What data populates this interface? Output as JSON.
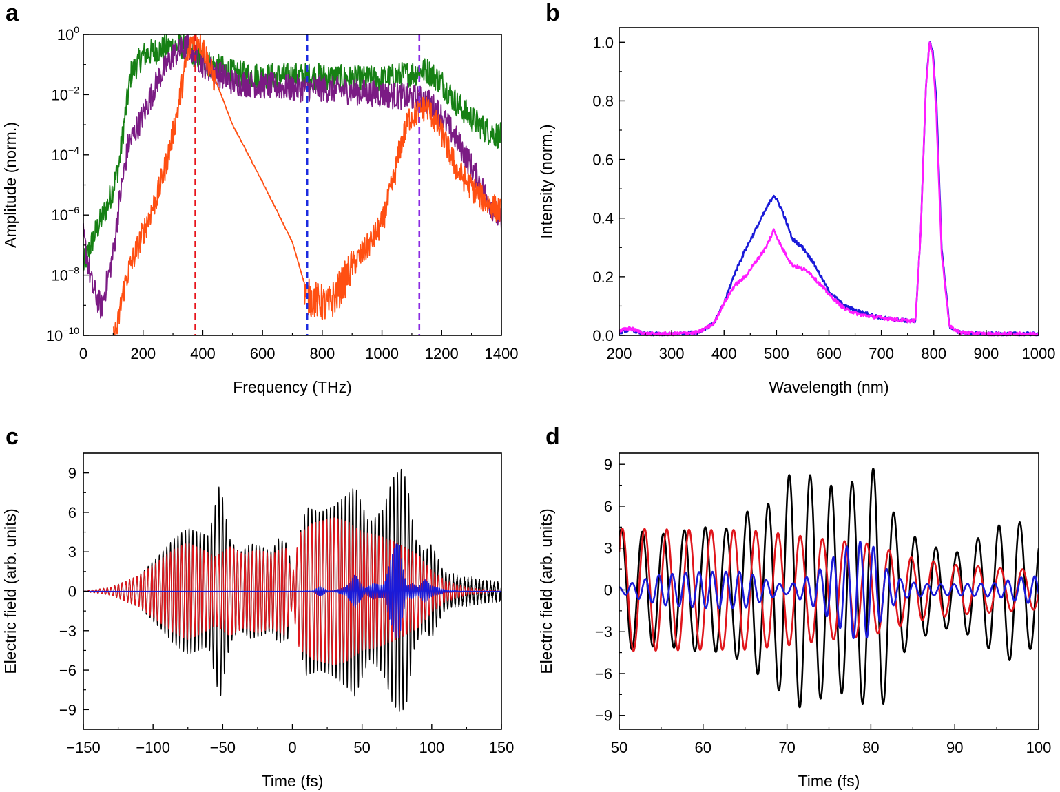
{
  "chart_data": [
    {
      "panel": "a",
      "type": "line",
      "xlabel": "Frequency (THz)",
      "ylabel": "Amplitude (norm.)",
      "yscale": "log",
      "xlim": [
        0,
        1400
      ],
      "ylim_exp": [
        -10,
        0
      ],
      "xticks": [
        0,
        200,
        400,
        600,
        800,
        1000,
        1200,
        1400
      ],
      "xtick_labels": [
        "0",
        "200",
        "400",
        "600",
        "800",
        "1000",
        "1200",
        "1400"
      ],
      "yticks_exp": [
        -10,
        -8,
        -6,
        -4,
        -2,
        0
      ],
      "ytick_bases": [
        "10",
        "10",
        "10",
        "10",
        "10",
        "10"
      ],
      "ytick_exponents": [
        "−10",
        "−8",
        "−6",
        "−4",
        "−2",
        "0"
      ],
      "vlines": [
        {
          "x": 375,
          "color": "#e8141c"
        },
        {
          "x": 750,
          "color": "#1c2ce0"
        },
        {
          "x": 1125,
          "color": "#8a2be2"
        }
      ],
      "series": [
        {
          "name": "green",
          "color": "#168014",
          "x": [
            0,
            40,
            80,
            100,
            120,
            140,
            160,
            200,
            260,
            300,
            340,
            400,
            500,
            600,
            700,
            800,
            900,
            1000,
            1100,
            1150,
            1200,
            1250,
            1300,
            1350,
            1400
          ],
          "log_y": [
            -7.6,
            -6.5,
            -5.6,
            -5.0,
            -4.2,
            -2.6,
            -1.2,
            -0.6,
            -0.4,
            -0.3,
            -0.3,
            -0.8,
            -1.2,
            -1.3,
            -1.3,
            -1.3,
            -1.4,
            -1.4,
            -1.2,
            -1.1,
            -1.5,
            -2.2,
            -2.7,
            -3.1,
            -3.3
          ]
        },
        {
          "name": "purple",
          "color": "#7b1b84",
          "x": [
            0,
            30,
            60,
            100,
            120,
            150,
            200,
            250,
            300,
            350,
            400,
            500,
            600,
            700,
            800,
            900,
            1000,
            1100,
            1150,
            1200,
            1250,
            1300,
            1350,
            1400
          ],
          "log_y": [
            -6.6,
            -8.3,
            -9.0,
            -7.2,
            -5.5,
            -3.6,
            -2.6,
            -1.4,
            -0.6,
            -0.3,
            -0.9,
            -1.5,
            -1.6,
            -1.7,
            -1.7,
            -1.8,
            -1.9,
            -2.0,
            -2.1,
            -2.6,
            -3.4,
            -4.3,
            -5.3,
            -6.2
          ]
        },
        {
          "name": "orange",
          "color": "#ff4f12",
          "x": [
            100,
            115,
            130,
            150,
            200,
            250,
            280,
            300,
            320,
            345,
            365,
            380,
            400,
            430,
            500,
            600,
            700,
            750,
            780,
            820,
            860,
            900,
            950,
            1000,
            1040,
            1060,
            1090,
            1120,
            1150,
            1200,
            1250,
            1300,
            1350,
            1400
          ],
          "log_y": [
            -10.0,
            -9.6,
            -8.6,
            -7.8,
            -6.5,
            -5.2,
            -4.1,
            -3.2,
            -2.2,
            -0.8,
            -0.1,
            0.0,
            -0.3,
            -1.2,
            -3.0,
            -4.9,
            -6.9,
            -8.6,
            -8.7,
            -8.9,
            -8.3,
            -7.6,
            -7.0,
            -6.2,
            -4.7,
            -3.7,
            -2.7,
            -2.5,
            -2.3,
            -3.2,
            -4.4,
            -5.0,
            -5.5,
            -5.8
          ]
        }
      ]
    },
    {
      "panel": "b",
      "type": "line",
      "xlabel": "Wavelength (nm)",
      "ylabel": "Intensity (norm.)",
      "xlim": [
        200,
        1000
      ],
      "ylim": [
        0,
        1.05
      ],
      "xticks": [
        200,
        300,
        400,
        500,
        600,
        700,
        800,
        900,
        1000
      ],
      "xtick_labels": [
        "200",
        "300",
        "400",
        "500",
        "600",
        "700",
        "800",
        "900",
        "1000"
      ],
      "yticks": [
        0,
        0.2,
        0.4,
        0.6,
        0.8,
        1.0
      ],
      "ytick_labels": [
        "0.0",
        "0.2",
        "0.4",
        "0.6",
        "0.8",
        "1.0"
      ],
      "series": [
        {
          "name": "blue",
          "color": "#1a1ad8",
          "x": [
            200,
            220,
            250,
            300,
            350,
            380,
            400,
            420,
            440,
            460,
            480,
            495,
            510,
            530,
            550,
            570,
            600,
            630,
            660,
            700,
            750,
            765,
            775,
            785,
            792,
            798,
            805,
            815,
            830,
            850,
            900,
            1000
          ],
          "y": [
            0.01,
            0.02,
            0.005,
            0.005,
            0.01,
            0.04,
            0.11,
            0.21,
            0.29,
            0.36,
            0.43,
            0.48,
            0.43,
            0.33,
            0.3,
            0.25,
            0.15,
            0.1,
            0.08,
            0.06,
            0.05,
            0.05,
            0.35,
            0.85,
            1.0,
            0.97,
            0.8,
            0.3,
            0.03,
            0.01,
            0.005,
            0.005
          ]
        },
        {
          "name": "magenta",
          "color": "#ff1cff",
          "x": [
            200,
            220,
            250,
            300,
            350,
            380,
            400,
            420,
            440,
            460,
            480,
            495,
            510,
            530,
            560,
            600,
            630,
            660,
            700,
            750,
            765,
            775,
            785,
            792,
            798,
            805,
            815,
            830,
            850,
            900,
            1000
          ],
          "y": [
            0.015,
            0.025,
            0.005,
            0.005,
            0.01,
            0.04,
            0.11,
            0.17,
            0.2,
            0.25,
            0.3,
            0.36,
            0.3,
            0.24,
            0.22,
            0.14,
            0.09,
            0.07,
            0.06,
            0.05,
            0.05,
            0.35,
            0.85,
            1.0,
            0.96,
            0.75,
            0.28,
            0.03,
            0.01,
            0.005,
            0.005
          ]
        }
      ]
    },
    {
      "panel": "c",
      "type": "line",
      "xlabel": "Time (fs)",
      "ylabel": "Electric field (arb. units)",
      "xlim": [
        -150,
        150
      ],
      "ylim": [
        -10.5,
        10.5
      ],
      "xticks": [
        -150,
        -100,
        -50,
        0,
        50,
        100,
        150
      ],
      "xtick_labels": [
        "−150",
        "−100",
        "−50",
        "0",
        "50",
        "100",
        "150"
      ],
      "yticks": [
        -9,
        -6,
        -3,
        0,
        3,
        6,
        9
      ],
      "ytick_labels": [
        "−9",
        "−6",
        "−3",
        "0",
        "3",
        "6",
        "9"
      ],
      "series": [
        {
          "name": "black",
          "color": "#000000",
          "period_fs": 2.67,
          "envelope_t": [
            -150,
            -130,
            -110,
            -95,
            -85,
            -75,
            -65,
            -60,
            -52,
            -45,
            -38,
            -30,
            -22,
            -15,
            -10,
            -3,
            0,
            5,
            10,
            20,
            30,
            40,
            45,
            55,
            65,
            72,
            78,
            82,
            88,
            95,
            100,
            108,
            118,
            130,
            140,
            150
          ],
          "envelope_a": [
            0,
            0.3,
            1.2,
            2.8,
            4.0,
            4.8,
            4.4,
            4.2,
            8.3,
            4.0,
            2.9,
            3.6,
            3.4,
            3.0,
            4.0,
            3.6,
            0.8,
            4.2,
            6.4,
            6.0,
            6.5,
            7.4,
            8.0,
            5.2,
            6.2,
            8.6,
            9.3,
            8.5,
            4.0,
            3.0,
            3.6,
            1.6,
            1.0,
            0.8,
            0.6,
            0.5
          ]
        },
        {
          "name": "red",
          "color": "#e0161c",
          "period_fs": 2.67,
          "envelope_t": [
            -150,
            -130,
            -110,
            -95,
            -85,
            -75,
            -65,
            -55,
            -45,
            -35,
            -25,
            -15,
            -5,
            0,
            5,
            15,
            30,
            40,
            50,
            60,
            70,
            80,
            90,
            100,
            110,
            125,
            140,
            150
          ],
          "envelope_a": [
            0,
            0.3,
            1.2,
            2.4,
            3.2,
            3.7,
            3.2,
            2.6,
            3.4,
            2.8,
            3.2,
            2.8,
            3.4,
            1.2,
            4.4,
            5.2,
            5.6,
            5.3,
            4.5,
            4.3,
            3.9,
            3.4,
            2.8,
            1.6,
            0.8,
            0.3,
            0.1,
            0
          ]
        },
        {
          "name": "blue",
          "color": "#1a1ad8",
          "period_fs": 1.3,
          "envelope_t": [
            -150,
            0,
            15,
            20,
            25,
            30,
            38,
            42,
            45,
            48,
            52,
            58,
            62,
            66,
            70,
            74,
            77,
            79,
            82,
            86,
            90,
            95,
            100,
            110,
            120,
            150
          ],
          "envelope_a": [
            0,
            0,
            0.05,
            0.4,
            0.05,
            0.05,
            0.3,
            0.8,
            1.3,
            0.8,
            0.2,
            0.6,
            0.5,
            0.5,
            2.2,
            3.6,
            3.5,
            2.0,
            0.4,
            0.6,
            0.3,
            0.9,
            0.4,
            0.1,
            0.02,
            0
          ]
        }
      ]
    },
    {
      "panel": "d",
      "type": "line",
      "xlabel": "Time (fs)",
      "ylabel": "Electric field (arb. units)",
      "xlim": [
        50,
        100
      ],
      "ylim": [
        -10,
        9.8
      ],
      "xticks": [
        50,
        60,
        70,
        80,
        90,
        100
      ],
      "xtick_labels": [
        "50",
        "60",
        "70",
        "80",
        "90",
        "100"
      ],
      "yticks": [
        -9,
        -6,
        -3,
        0,
        3,
        6,
        9
      ],
      "ytick_labels": [
        "−9",
        "−6",
        "−3",
        "0",
        "3",
        "6",
        "9"
      ],
      "series": [
        {
          "name": "black",
          "color": "#000000",
          "period_fs": 2.5,
          "phase": 0.9,
          "envelope_t": [
            50,
            55,
            60,
            63,
            66,
            68,
            70,
            72,
            74,
            76,
            78,
            80,
            81,
            83,
            86,
            90,
            94,
            97,
            100
          ],
          "envelope_a": [
            4.4,
            4.0,
            4.5,
            4.4,
            6.0,
            6.2,
            8.2,
            8.5,
            7.8,
            7.3,
            7.8,
            8.5,
            9.2,
            5.0,
            3.4,
            2.6,
            4.2,
            5.2,
            3.8
          ]
        },
        {
          "name": "red",
          "color": "#e0161c",
          "period_fs": 2.65,
          "phase": 1.5,
          "envelope_t": [
            50,
            60,
            65,
            70,
            75,
            80,
            85,
            90,
            95,
            100
          ],
          "envelope_a": [
            4.4,
            4.3,
            4.3,
            4.0,
            3.6,
            3.3,
            2.3,
            1.8,
            1.6,
            1.4
          ]
        },
        {
          "name": "blue",
          "color": "#1a1ad8",
          "period_fs": 1.6,
          "phase": 0.3,
          "envelope_t": [
            50,
            52,
            55,
            60,
            65,
            68,
            70,
            72,
            74,
            76,
            78,
            80,
            82,
            84,
            87,
            90,
            95,
            98,
            100
          ],
          "envelope_a": [
            0.2,
            0.6,
            1.1,
            1.3,
            1.3,
            0.6,
            0.3,
            0.8,
            1.5,
            2.6,
            3.5,
            3.4,
            1.4,
            0.6,
            0.4,
            0.4,
            0.5,
            0.9,
            1.0
          ]
        }
      ]
    }
  ],
  "panels": {
    "a": {
      "letter": "a"
    },
    "b": {
      "letter": "b"
    },
    "c": {
      "letter": "c"
    },
    "d": {
      "letter": "d"
    }
  }
}
